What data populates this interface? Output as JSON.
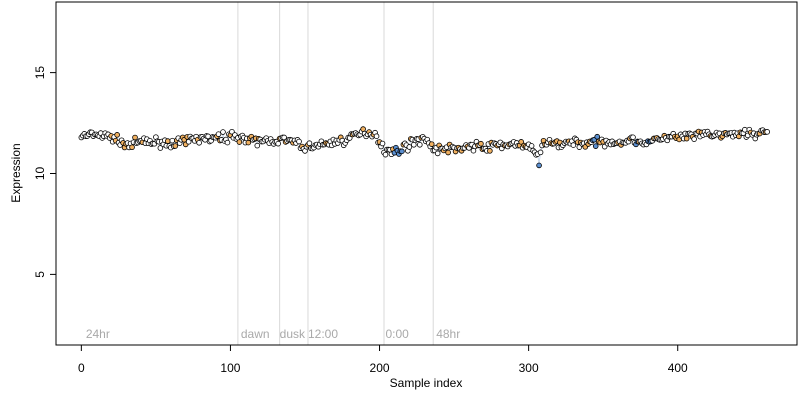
{
  "chart_data": {
    "type": "scatter",
    "title": "",
    "xlabel": "Sample index",
    "ylabel": "Expression",
    "xlim": [
      -17,
      480
    ],
    "ylim": [
      1.5,
      18.5
    ],
    "x_ticks": [
      0,
      100,
      200,
      300,
      400
    ],
    "y_ticks": [
      5,
      10,
      15
    ],
    "grid": false,
    "legend": "none",
    "colors": {
      "primary_fill": "#ffffff",
      "highlight_fill": "#f0b060",
      "alt_fill": "#5b8fd0",
      "point_stroke": "#000000",
      "divider": "#d9d9d9",
      "period_label": "#a9a9a9"
    },
    "dividers": [
      105,
      133,
      152,
      203,
      236
    ],
    "period_labels": [
      {
        "x": 3,
        "label": "24hr"
      },
      {
        "x": 107,
        "label": "dawn"
      },
      {
        "x": 133,
        "label": "dusk"
      },
      {
        "x": 152,
        "label": "12:00"
      },
      {
        "x": 204,
        "label": "0:00"
      },
      {
        "x": 238,
        "label": "48hr"
      }
    ],
    "anchor_points": [
      [
        0,
        11.85
      ],
      [
        10,
        11.9
      ],
      [
        20,
        11.8
      ],
      [
        30,
        11.45
      ],
      [
        40,
        11.55
      ],
      [
        50,
        11.55
      ],
      [
        60,
        11.5
      ],
      [
        70,
        11.6
      ],
      [
        80,
        11.75
      ],
      [
        90,
        11.7
      ],
      [
        100,
        11.85
      ],
      [
        105,
        11.9
      ],
      [
        110,
        11.65
      ],
      [
        120,
        11.6
      ],
      [
        130,
        11.65
      ],
      [
        140,
        11.6
      ],
      [
        150,
        11.3
      ],
      [
        160,
        11.4
      ],
      [
        170,
        11.55
      ],
      [
        180,
        11.75
      ],
      [
        190,
        12.05
      ],
      [
        197,
        12.0
      ],
      [
        203,
        11.2
      ],
      [
        210,
        11.05
      ],
      [
        220,
        11.45
      ],
      [
        230,
        11.8
      ],
      [
        236,
        11.2
      ],
      [
        250,
        11.25
      ],
      [
        260,
        11.35
      ],
      [
        270,
        11.3
      ],
      [
        280,
        11.4
      ],
      [
        290,
        11.5
      ],
      [
        300,
        11.25
      ],
      [
        307,
        10.9
      ],
      [
        310,
        11.5
      ],
      [
        320,
        11.5
      ],
      [
        330,
        11.55
      ],
      [
        340,
        11.5
      ],
      [
        350,
        11.6
      ],
      [
        360,
        11.55
      ],
      [
        370,
        11.65
      ],
      [
        380,
        11.55
      ],
      [
        390,
        11.75
      ],
      [
        400,
        11.8
      ],
      [
        410,
        11.85
      ],
      [
        420,
        11.95
      ],
      [
        430,
        11.9
      ],
      [
        440,
        11.95
      ],
      [
        450,
        12.0
      ],
      [
        460,
        12.05
      ]
    ],
    "n_points": 461,
    "noise": 0.22
  }
}
